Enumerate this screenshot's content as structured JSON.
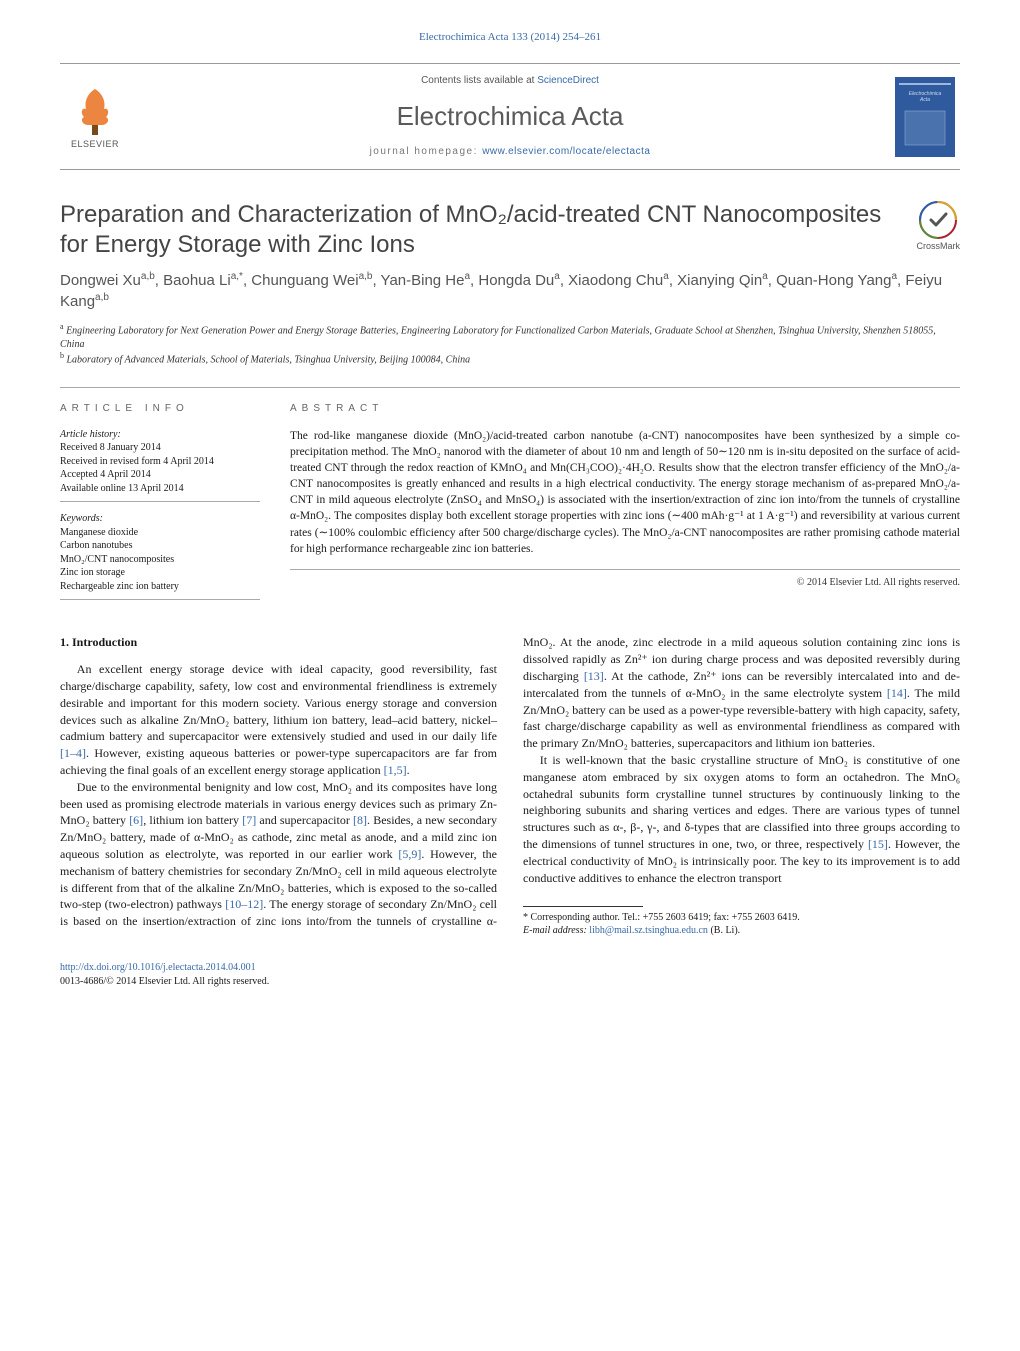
{
  "top_link": "Electrochimica Acta 133 (2014) 254–261",
  "header": {
    "elsevier_label": "ELSEVIER",
    "contents_prefix": "Contents lists available at ",
    "contents_link": "ScienceDirect",
    "journal_name": "Electrochimica Acta",
    "homepage_prefix": "journal homepage: ",
    "homepage_url": "www.elsevier.com/locate/electacta",
    "cover_title": "Electrochimica Acta",
    "cover_color": "#2f5b9e",
    "elsevier_orange": "#e9701e"
  },
  "title": "Preparation and Characterization of MnO₂/acid-treated CNT Nanocomposites for Energy Storage with Zinc Ions",
  "crossmark_label": "CrossMark",
  "authors_html": "Dongwei Xu<sup>a,b</sup>, Baohua Li<sup>a,*</sup>, Chunguang Wei<sup>a,b</sup>, Yan-Bing He<sup>a</sup>, Hongda Du<sup>a</sup>, Xiaodong Chu<sup>a</sup>, Xianying Qin<sup>a</sup>, Quan-Hong Yang<sup>a</sup>, Feiyu Kang<sup>a,b</sup>",
  "affiliations": {
    "a": "Engineering Laboratory for Next Generation Power and Energy Storage Batteries, Engineering Laboratory for Functionalized Carbon Materials, Graduate School at Shenzhen, Tsinghua University, Shenzhen 518055, China",
    "b": "Laboratory of Advanced Materials, School of Materials, Tsinghua University, Beijing 100084, China"
  },
  "info": {
    "label": "article info",
    "history_head": "Article history:",
    "history_lines": [
      "Received 8 January 2014",
      "Received in revised form 4 April 2014",
      "Accepted 4 April 2014",
      "Available online 13 April 2014"
    ],
    "keywords_head": "Keywords:",
    "keywords": [
      "Manganese dioxide",
      "Carbon nanotubes",
      "MnO₂/CNT nanocomposites",
      "Zinc ion storage",
      "Rechargeable zinc ion battery"
    ]
  },
  "abstract": {
    "label": "abstract",
    "text": "The rod-like manganese dioxide (MnO₂)/acid-treated carbon nanotube (a-CNT) nanocomposites have been synthesized by a simple co-precipitation method. The MnO₂ nanorod with the diameter of about 10 nm and length of 50∼120 nm is in-situ deposited on the surface of acid-treated CNT through the redox reaction of KMnO₄ and Mn(CH₃COO)₂·4H₂O. Results show that the electron transfer efficiency of the MnO₂/a-CNT nanocomposites is greatly enhanced and results in a high electrical conductivity. The energy storage mechanism of as-prepared MnO₂/a-CNT in mild aqueous electrolyte (ZnSO₄ and MnSO₄) is associated with the insertion/extraction of zinc ion into/from the tunnels of crystalline α-MnO₂. The composites display both excellent storage properties with zinc ions (∼400 mAh·g⁻¹ at 1 A·g⁻¹) and reversibility at various current rates (∼100% coulombic efficiency after 500 charge/discharge cycles). The MnO₂/a-CNT nanocomposites are rather promising cathode material for high performance rechargeable zinc ion batteries.",
    "copyright": "© 2014 Elsevier Ltd. All rights reserved."
  },
  "body": {
    "heading": "1. Introduction",
    "p1_a": "An excellent energy storage device with ideal capacity, good reversibility, fast charge/discharge capability, safety, low cost and environmental friendliness is extremely desirable and important for this modern society. Various energy storage and conversion devices such as alkaline Zn/MnO₂ battery, lithium ion battery, lead–acid battery, nickel–cadmium battery and supercapacitor were extensively studied and used in our daily life ",
    "p1_cite1": "[1–4]",
    "p1_b": ". However, existing aqueous batteries or power-type supercapacitors are far from achieving the final goals of an excellent energy storage application ",
    "p1_cite2": "[1,5]",
    "p1_c": ".",
    "p2_a": "Due to the environmental benignity and low cost, MnO₂ and its composites have long been used as promising electrode materials in various energy devices such as primary Zn-MnO₂ battery ",
    "p2_cite1": "[6]",
    "p2_b": ", lithium ion battery ",
    "p2_cite2": "[7]",
    "p2_c": " and supercapacitor ",
    "p2_cite3": "[8]",
    "p2_d": ". Besides, a new secondary Zn/MnO₂ battery, made of α-MnO₂ as cathode, zinc metal as anode, and a mild zinc ion aqueous solution as electrolyte, was reported in our earlier work ",
    "p2_cite4": "[5,9]",
    "p2_e": ". However, the mechanism of battery chemistries for secondary Zn/MnO₂ cell in mild aqueous ",
    "p2_f": "electrolyte is different from that of the alkaline Zn/MnO₂ batteries, which is exposed to the so-called two-step (two-electron) pathways ",
    "p2_cite5": "[10–12]",
    "p2_g": ". The energy storage of secondary Zn/MnO₂ cell is based on the insertion/extraction of zinc ions into/from the tunnels of crystalline α-MnO₂. At the anode, zinc electrode in a mild aqueous solution containing zinc ions is dissolved rapidly as Zn²⁺ ion during charge process and was deposited reversibly during discharging ",
    "p2_cite6": "[13]",
    "p2_h": ". At the cathode, Zn²⁺ ions can be reversibly intercalated into and de-intercalated from the tunnels of α-MnO₂ in the same electrolyte system ",
    "p2_cite7": "[14]",
    "p2_i": ". The mild Zn/MnO₂ battery can be used as a power-type reversible-battery with high capacity, safety, fast charge/discharge capability as well as environmental friendliness as compared with the primary Zn/MnO₂ batteries, supercapacitors and lithium ion batteries.",
    "p3_a": "It is well-known that the basic crystalline structure of MnO₂ is constitutive of one manganese atom embraced by six oxygen atoms to form an octahedron. The MnO₆ octahedral subunits form crystalline tunnel structures by continuously linking to the neighboring subunits and sharing vertices and edges. There are various types of tunnel structures such as α-, β-, γ-, and δ-types that are classified into three groups according to the dimensions of tunnel structures in one, two, or three, respectively ",
    "p3_cite1": "[15]",
    "p3_b": ". However, the electrical conductivity of MnO₂ is intrinsically poor. The key to its improvement is to add conductive additives to enhance the electron transport"
  },
  "footnote": {
    "corr": "* Corresponding author. Tel.: +755 2603 6419; fax: +755 2603 6419.",
    "email_label": "E-mail address: ",
    "email": "libh@mail.sz.tsinghua.edu.cn",
    "email_who": " (B. Li)."
  },
  "doi": {
    "url": "http://dx.doi.org/10.1016/j.electacta.2014.04.001",
    "issn_line": "0013-4686/© 2014 Elsevier Ltd. All rights reserved."
  },
  "colors": {
    "link": "#3869a8",
    "text": "#1a1a1a",
    "gray": "#666666"
  }
}
